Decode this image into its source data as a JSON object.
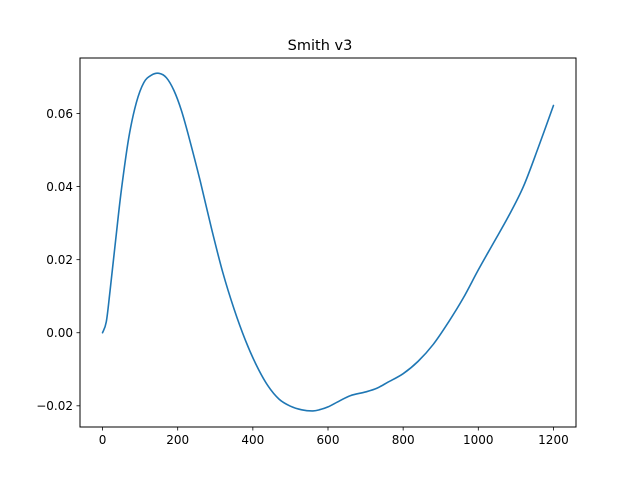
{
  "chart_data": {
    "type": "line",
    "title": "Smith v3",
    "xlabel": "",
    "ylabel": "",
    "xlim": [
      -60,
      1260
    ],
    "ylim": [
      -0.0258,
      0.0752
    ],
    "xticks": [
      0,
      200,
      400,
      600,
      800,
      1000,
      1200
    ],
    "xtick_labels": [
      "0",
      "200",
      "400",
      "600",
      "800",
      "1000",
      "1200"
    ],
    "yticks": [
      -0.02,
      0.0,
      0.02,
      0.04,
      0.06
    ],
    "ytick_labels": [
      "−0.02",
      "0.00",
      "0.02",
      "0.04",
      "0.06"
    ],
    "grid": false,
    "series": [
      {
        "color": "#1f77b4",
        "x": [
          0,
          10,
          20,
          35,
          50,
          70,
          90,
          110,
          130,
          150,
          170,
          190,
          210,
          230,
          260,
          290,
          320,
          350,
          380,
          410,
          440,
          470,
          500,
          530,
          560,
          580,
          600,
          630,
          660,
          700,
          730,
          760,
          800,
          840,
          880,
          920,
          960,
          1000,
          1040,
          1080,
          1120,
          1160,
          1200
        ],
        "y": [
          0.0,
          0.003,
          0.0115,
          0.0255,
          0.039,
          0.0535,
          0.063,
          0.0685,
          0.0705,
          0.071,
          0.0698,
          0.0663,
          0.0608,
          0.0535,
          0.0415,
          0.0285,
          0.0165,
          0.0065,
          -0.002,
          -0.009,
          -0.0145,
          -0.0182,
          -0.0201,
          -0.0211,
          -0.0214,
          -0.021,
          -0.0203,
          -0.0187,
          -0.0172,
          -0.0162,
          -0.0152,
          -0.0135,
          -0.0112,
          -0.0078,
          -0.0032,
          0.0028,
          0.0095,
          0.0172,
          0.0245,
          0.0318,
          0.04,
          0.0508,
          0.0622
        ]
      }
    ]
  }
}
